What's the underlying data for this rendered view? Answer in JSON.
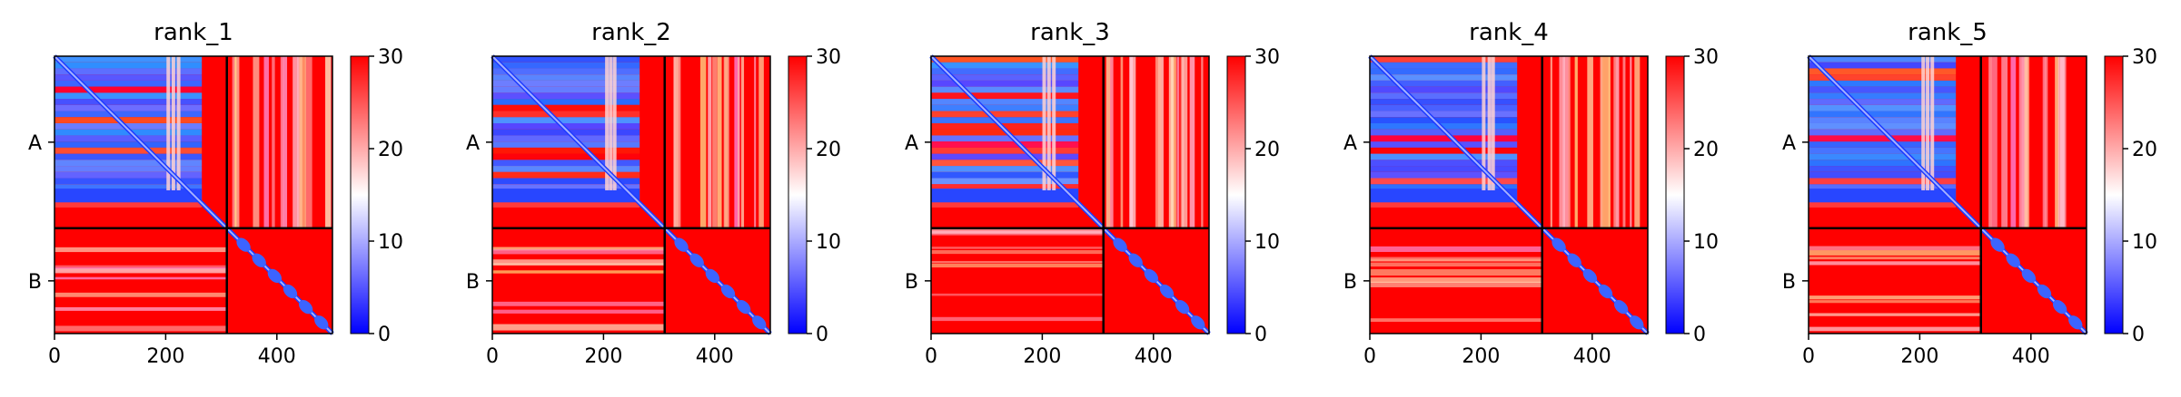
{
  "colors": {
    "low": "#0000ff",
    "mid": "#ffffff",
    "high": "#ff0000",
    "divider": "#000000",
    "axis": "#000000"
  },
  "chart_data": [
    {
      "type": "heatmap",
      "title": "rank_1",
      "x_ticks": [
        0,
        200,
        400
      ],
      "x_tick_labels": [
        "0",
        "200",
        "400"
      ],
      "xlim": [
        0,
        500
      ],
      "chain_labels": [
        "A",
        "B"
      ],
      "chain_boundary": 310,
      "length": 500,
      "colorbar_ticks": [
        0,
        10,
        20,
        30
      ],
      "vmin": 0,
      "vmax": 30,
      "blue_blocks_A": [
        [
          0,
          265
        ]
      ],
      "seed": 1
    },
    {
      "type": "heatmap",
      "title": "rank_2",
      "x_ticks": [
        0,
        200,
        400
      ],
      "x_tick_labels": [
        "0",
        "200",
        "400"
      ],
      "xlim": [
        0,
        500
      ],
      "chain_labels": [
        "A",
        "B"
      ],
      "chain_boundary": 310,
      "length": 500,
      "colorbar_ticks": [
        0,
        10,
        20,
        30
      ],
      "vmin": 0,
      "vmax": 30,
      "blue_blocks_A": [
        [
          0,
          265
        ]
      ],
      "seed": 2
    },
    {
      "type": "heatmap",
      "title": "rank_3",
      "x_ticks": [
        0,
        200,
        400
      ],
      "x_tick_labels": [
        "0",
        "200",
        "400"
      ],
      "xlim": [
        0,
        500
      ],
      "chain_labels": [
        "A",
        "B"
      ],
      "chain_boundary": 310,
      "length": 500,
      "colorbar_ticks": [
        0,
        10,
        20,
        30
      ],
      "vmin": 0,
      "vmax": 30,
      "blue_blocks_A": [
        [
          0,
          265
        ]
      ],
      "seed": 3
    },
    {
      "type": "heatmap",
      "title": "rank_4",
      "x_ticks": [
        0,
        200,
        400
      ],
      "x_tick_labels": [
        "0",
        "200",
        "400"
      ],
      "xlim": [
        0,
        500
      ],
      "chain_labels": [
        "A",
        "B"
      ],
      "chain_boundary": 310,
      "length": 500,
      "colorbar_ticks": [
        0,
        10,
        20,
        30
      ],
      "vmin": 0,
      "vmax": 30,
      "blue_blocks_A": [
        [
          0,
          265
        ]
      ],
      "seed": 4
    },
    {
      "type": "heatmap",
      "title": "rank_5",
      "x_ticks": [
        0,
        200,
        400
      ],
      "x_tick_labels": [
        "0",
        "200",
        "400"
      ],
      "xlim": [
        0,
        500
      ],
      "chain_labels": [
        "A",
        "B"
      ],
      "chain_boundary": 310,
      "length": 500,
      "colorbar_ticks": [
        0,
        10,
        20,
        30
      ],
      "vmin": 0,
      "vmax": 30,
      "blue_blocks_A": [
        [
          0,
          265
        ]
      ],
      "seed": 5
    }
  ]
}
